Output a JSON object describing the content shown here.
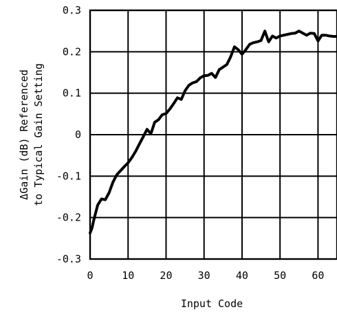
{
  "chart_data": {
    "type": "line",
    "title": "",
    "xlabel": "Input Code",
    "ylabel_line1": "ΔGain (dB) Referenced",
    "ylabel_line2": "to Typical Gain Setting",
    "xlim": [
      0,
      65
    ],
    "ylim": [
      -0.3,
      0.3
    ],
    "grid": true,
    "x_ticks": [
      0,
      10,
      20,
      30,
      40,
      50,
      60
    ],
    "x_tick_labels": [
      "0",
      "10",
      "20",
      "30",
      "40",
      "50",
      "60"
    ],
    "y_ticks": [
      0.3,
      0.2,
      0.1,
      0,
      -0.1,
      -0.2,
      -0.3
    ],
    "y_tick_labels": [
      "0.3",
      "0.2",
      "0.1",
      "0",
      "-0.1",
      "-0.2",
      "-0.3"
    ],
    "series": [
      {
        "x": [
          0,
          0.5,
          1,
          2,
          3,
          4,
          5,
          6,
          7,
          8,
          9,
          10,
          11,
          12,
          13,
          14,
          15,
          16,
          17,
          18,
          19,
          20,
          21,
          22,
          23,
          24,
          25,
          26,
          27,
          28,
          29,
          30,
          31,
          32,
          33,
          34,
          35,
          36,
          37,
          38,
          39,
          40,
          41,
          42,
          43,
          44,
          45,
          46,
          47,
          48,
          49,
          50,
          51,
          52,
          53,
          54,
          55,
          56,
          57,
          58,
          59,
          60,
          61,
          62,
          63,
          64,
          65
        ],
        "y": [
          -0.237,
          -0.225,
          -0.205,
          -0.17,
          -0.155,
          -0.157,
          -0.14,
          -0.115,
          -0.097,
          -0.087,
          -0.077,
          -0.068,
          -0.055,
          -0.04,
          -0.022,
          -0.005,
          0.013,
          0.002,
          0.03,
          0.036,
          0.048,
          0.051,
          0.062,
          0.075,
          0.089,
          0.085,
          0.106,
          0.119,
          0.125,
          0.128,
          0.137,
          0.142,
          0.143,
          0.148,
          0.138,
          0.157,
          0.163,
          0.169,
          0.188,
          0.212,
          0.205,
          0.194,
          0.205,
          0.218,
          0.222,
          0.224,
          0.227,
          0.25,
          0.224,
          0.238,
          0.233,
          0.238,
          0.24,
          0.242,
          0.244,
          0.245,
          0.25,
          0.245,
          0.24,
          0.245,
          0.244,
          0.226,
          0.24,
          0.24,
          0.238,
          0.237,
          0.237
        ]
      }
    ]
  }
}
